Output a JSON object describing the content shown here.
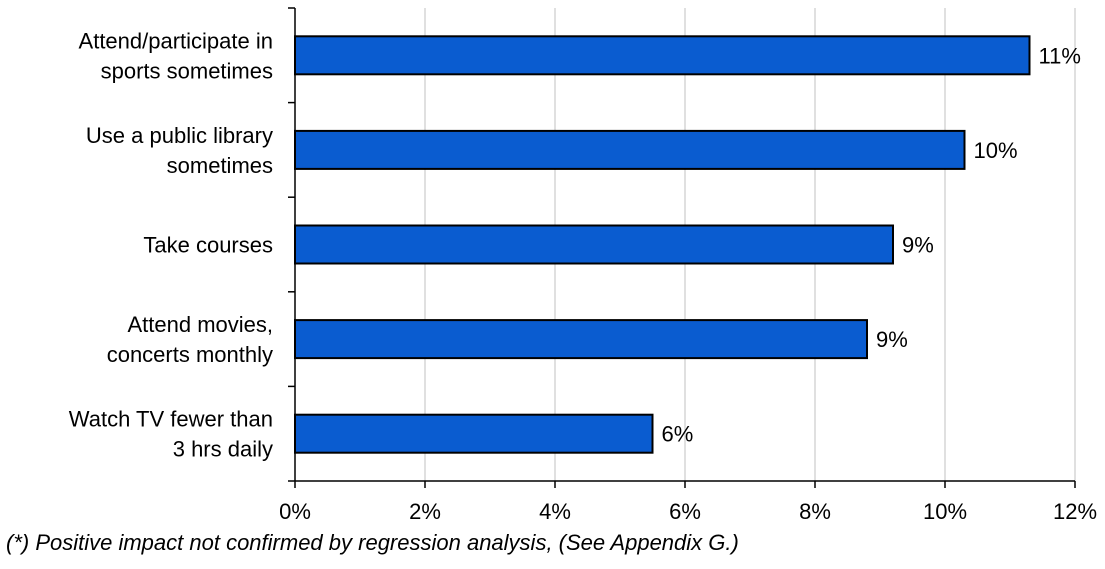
{
  "chart_data": {
    "type": "bar",
    "orientation": "horizontal",
    "categories": [
      [
        "Attend/participate in",
        "sports sometimes"
      ],
      [
        "Use a public library",
        "sometimes"
      ],
      [
        "Take courses"
      ],
      [
        "Attend movies,",
        "concerts monthly"
      ],
      [
        "Watch TV fewer than",
        "3 hrs daily"
      ]
    ],
    "values": [
      11.3,
      10.3,
      9.2,
      8.8,
      5.5
    ],
    "data_labels": [
      "11%",
      "10%",
      "9%",
      "9%",
      "6%"
    ],
    "xlim": [
      0,
      12
    ],
    "x_ticks": [
      0,
      2,
      4,
      6,
      8,
      10,
      12
    ],
    "x_tick_labels": [
      "0%",
      "2%",
      "4%",
      "6%",
      "8%",
      "10%",
      "12%"
    ],
    "grid": "vertical",
    "bar_color": "#0a5cd0",
    "title": "",
    "xlabel": "",
    "ylabel": ""
  },
  "footnote": "(*) Positive impact not confirmed by regression analysis, (See Appendix G.)"
}
